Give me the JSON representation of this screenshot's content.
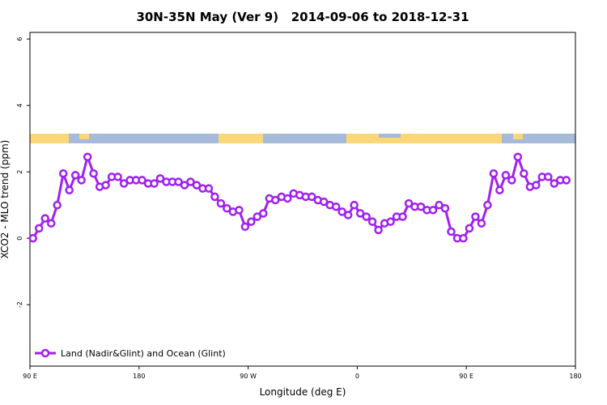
{
  "chart_data": {
    "type": "line",
    "title": "30N-35N May (Ver 9)   2014-09-06 to 2018-12-31",
    "xlabel": "Longitude (deg E)",
    "ylabel": "XCO2 - MLO trend (ppm)",
    "xlim": [
      90,
      540
    ],
    "ylim": [
      -3.85,
      6.2
    ],
    "xticks": [
      {
        "value": 90,
        "label": "90 E"
      },
      180,
      {
        "value": 270,
        "label": "90 W"
      },
      {
        "value": 360,
        "label": "0"
      },
      {
        "value": 450,
        "label": "90 E"
      },
      {
        "value": 540,
        "label": "180"
      }
    ],
    "yticks": [
      -2,
      0,
      2,
      4,
      6
    ],
    "legend": "bottom-left",
    "series": [
      {
        "name": "Land (Nadir&Glint) and Ocean (Glint)",
        "color": "#a020f0",
        "x": [
          92.5,
          97.5,
          102.5,
          107.5,
          112.5,
          117.5,
          122.5,
          127.5,
          132.5,
          137.5,
          142.5,
          147.5,
          152.5,
          157.5,
          162.5,
          167.5,
          172.5,
          177.5,
          182.5,
          187.5,
          192.5,
          197.5,
          202.5,
          207.5,
          212.5,
          217.5,
          222.5,
          227.5,
          232.5,
          237.5,
          242.5,
          247.5,
          252.5,
          257.5,
          262.5,
          267.5,
          272.5,
          277.5,
          282.5,
          287.5,
          292.5,
          297.5,
          302.5,
          307.5,
          312.5,
          317.5,
          322.5,
          327.5,
          332.5,
          337.5,
          342.5,
          347.5,
          352.5,
          357.5,
          362.5,
          367.5,
          372.5,
          377.5,
          382.5,
          387.5,
          392.5,
          397.5,
          402.5,
          407.5,
          412.5,
          417.5,
          422.5,
          427.5,
          432.5,
          437.5,
          442.5,
          447.5,
          452.5,
          457.5,
          462.5,
          467.5,
          472.5,
          477.5,
          482.5,
          487.5,
          492.5,
          497.5,
          502.5,
          507.5,
          512.5,
          517.5,
          522.5,
          527.5,
          532.5
        ],
        "values": [
          0.0,
          0.3,
          0.6,
          0.45,
          1.0,
          1.95,
          1.45,
          1.9,
          1.75,
          2.45,
          1.95,
          1.55,
          1.6,
          1.85,
          1.85,
          1.65,
          1.75,
          1.75,
          1.75,
          1.65,
          1.65,
          1.8,
          1.7,
          1.7,
          1.7,
          1.6,
          1.7,
          1.6,
          1.5,
          1.5,
          1.25,
          1.05,
          0.9,
          0.8,
          0.85,
          0.35,
          0.5,
          0.65,
          0.75,
          1.2,
          1.15,
          1.25,
          1.2,
          1.35,
          1.3,
          1.25,
          1.25,
          1.15,
          1.1,
          1.0,
          0.95,
          0.8,
          0.7,
          1.0,
          0.75,
          0.65,
          0.5,
          0.25,
          0.45,
          0.5,
          0.65,
          0.65,
          1.05,
          0.95,
          0.95,
          0.85,
          0.85,
          1.0,
          0.9,
          0.2,
          0.0,
          0.0,
          0.3,
          0.65,
          0.45,
          1.0,
          1.95,
          1.45,
          1.9,
          1.75,
          2.45,
          1.95,
          1.55,
          1.6,
          1.85,
          1.85,
          1.65,
          1.75,
          1.75
        ]
      }
    ]
  }
}
